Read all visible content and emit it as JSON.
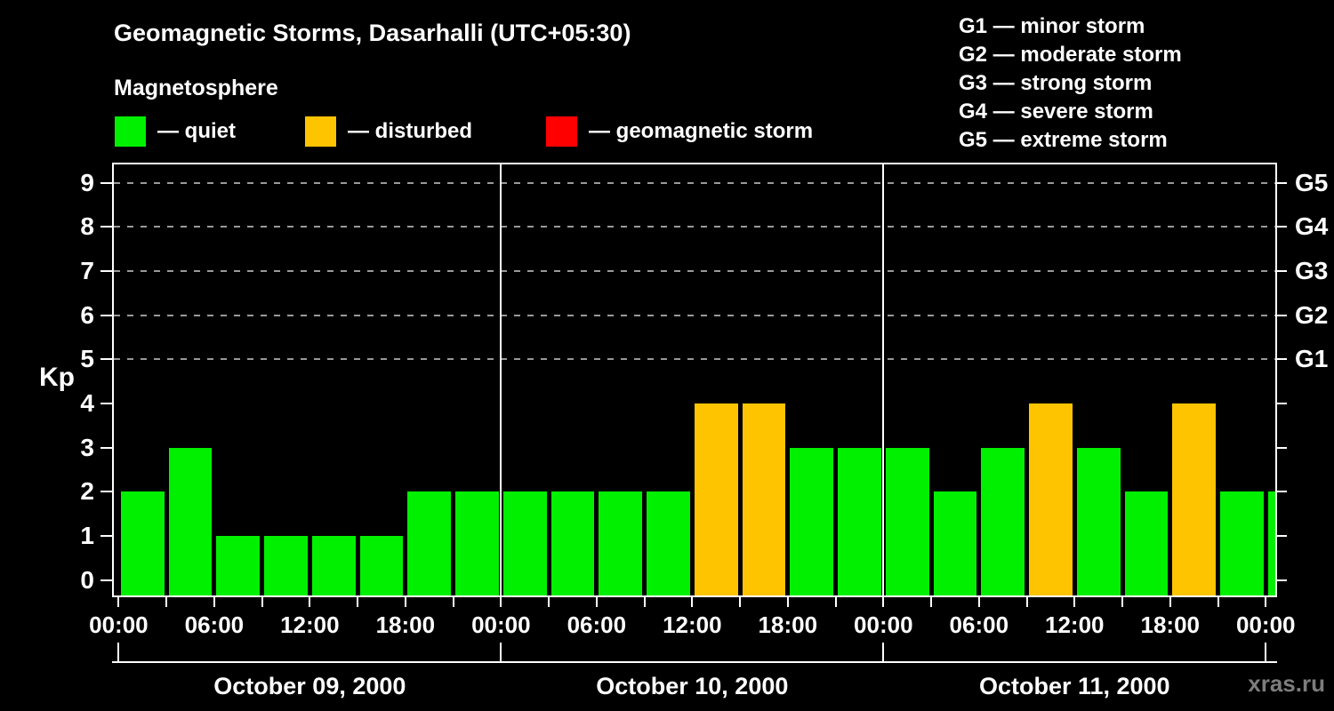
{
  "header": {
    "title": "Geomagnetic Storms, Dasarhalli (UTC+05:30)",
    "subtitle": "Magnetosphere"
  },
  "kp_legend": [
    {
      "name": "quiet",
      "label": "— quiet",
      "color": "#00f000"
    },
    {
      "name": "disturbed",
      "label": "— disturbed",
      "color": "#ffc400"
    },
    {
      "name": "storm",
      "label": "— geomagnetic storm",
      "color": "#ff0000"
    }
  ],
  "g_scale_legend": [
    {
      "label": "G1 — minor storm"
    },
    {
      "label": "G2 — moderate storm"
    },
    {
      "label": "G3 — strong storm"
    },
    {
      "label": "G4 — severe storm"
    },
    {
      "label": "G5 — extreme storm"
    }
  ],
  "watermark": "xras.ru",
  "chart_data": {
    "type": "bar",
    "title": "Geomagnetic Storms, Dasarhalli (UTC+05:30)",
    "ylabel": "Kp",
    "ylim": [
      0,
      9
    ],
    "y_ticks": [
      0,
      1,
      2,
      3,
      4,
      5,
      6,
      7,
      8,
      9
    ],
    "grid_dashed_levels": [
      5,
      6,
      7,
      8,
      9
    ],
    "right_axis": [
      {
        "kp": 5,
        "label": "G1"
      },
      {
        "kp": 6,
        "label": "G2"
      },
      {
        "kp": 7,
        "label": "G3"
      },
      {
        "kp": 8,
        "label": "G4"
      },
      {
        "kp": 9,
        "label": "G5"
      }
    ],
    "bar_interval_hours": 3,
    "x_minor_tick_hours": 3,
    "x_labels": [
      {
        "hour": 0,
        "label": "00:00"
      },
      {
        "hour": 6,
        "label": "06:00"
      },
      {
        "hour": 12,
        "label": "12:00"
      },
      {
        "hour": 18,
        "label": "18:00"
      },
      {
        "hour": 24,
        "label": "00:00"
      },
      {
        "hour": 30,
        "label": "06:00"
      },
      {
        "hour": 36,
        "label": "12:00"
      },
      {
        "hour": 42,
        "label": "18:00"
      },
      {
        "hour": 48,
        "label": "00:00"
      },
      {
        "hour": 54,
        "label": "06:00"
      },
      {
        "hour": 60,
        "label": "12:00"
      },
      {
        "hour": 66,
        "label": "18:00"
      },
      {
        "hour": 72,
        "label": "00:00"
      }
    ],
    "days": [
      {
        "date": "October 09, 2000",
        "kp_values": [
          2,
          3,
          1,
          1,
          1,
          1,
          2,
          2
        ],
        "statuses": [
          "quiet",
          "quiet",
          "quiet",
          "quiet",
          "quiet",
          "quiet",
          "quiet",
          "quiet"
        ]
      },
      {
        "date": "October 10, 2000",
        "kp_values": [
          2,
          2,
          2,
          2,
          4,
          4,
          3,
          3
        ],
        "statuses": [
          "quiet",
          "quiet",
          "quiet",
          "quiet",
          "disturbed",
          "disturbed",
          "quiet",
          "quiet"
        ]
      },
      {
        "date": "October 11, 2000",
        "kp_values": [
          3,
          2,
          3,
          4,
          3,
          2,
          4,
          2
        ],
        "statuses": [
          "quiet",
          "quiet",
          "quiet",
          "disturbed",
          "quiet",
          "quiet",
          "disturbed",
          "quiet"
        ]
      }
    ],
    "partial_next_bar": {
      "kp": 2,
      "status": "quiet"
    },
    "status_colors": {
      "quiet": "#00f000",
      "disturbed": "#ffc400",
      "storm": "#ff0000"
    },
    "grid_color": "#999999",
    "axis_color": "#ffffff",
    "background_color": "#000000"
  }
}
